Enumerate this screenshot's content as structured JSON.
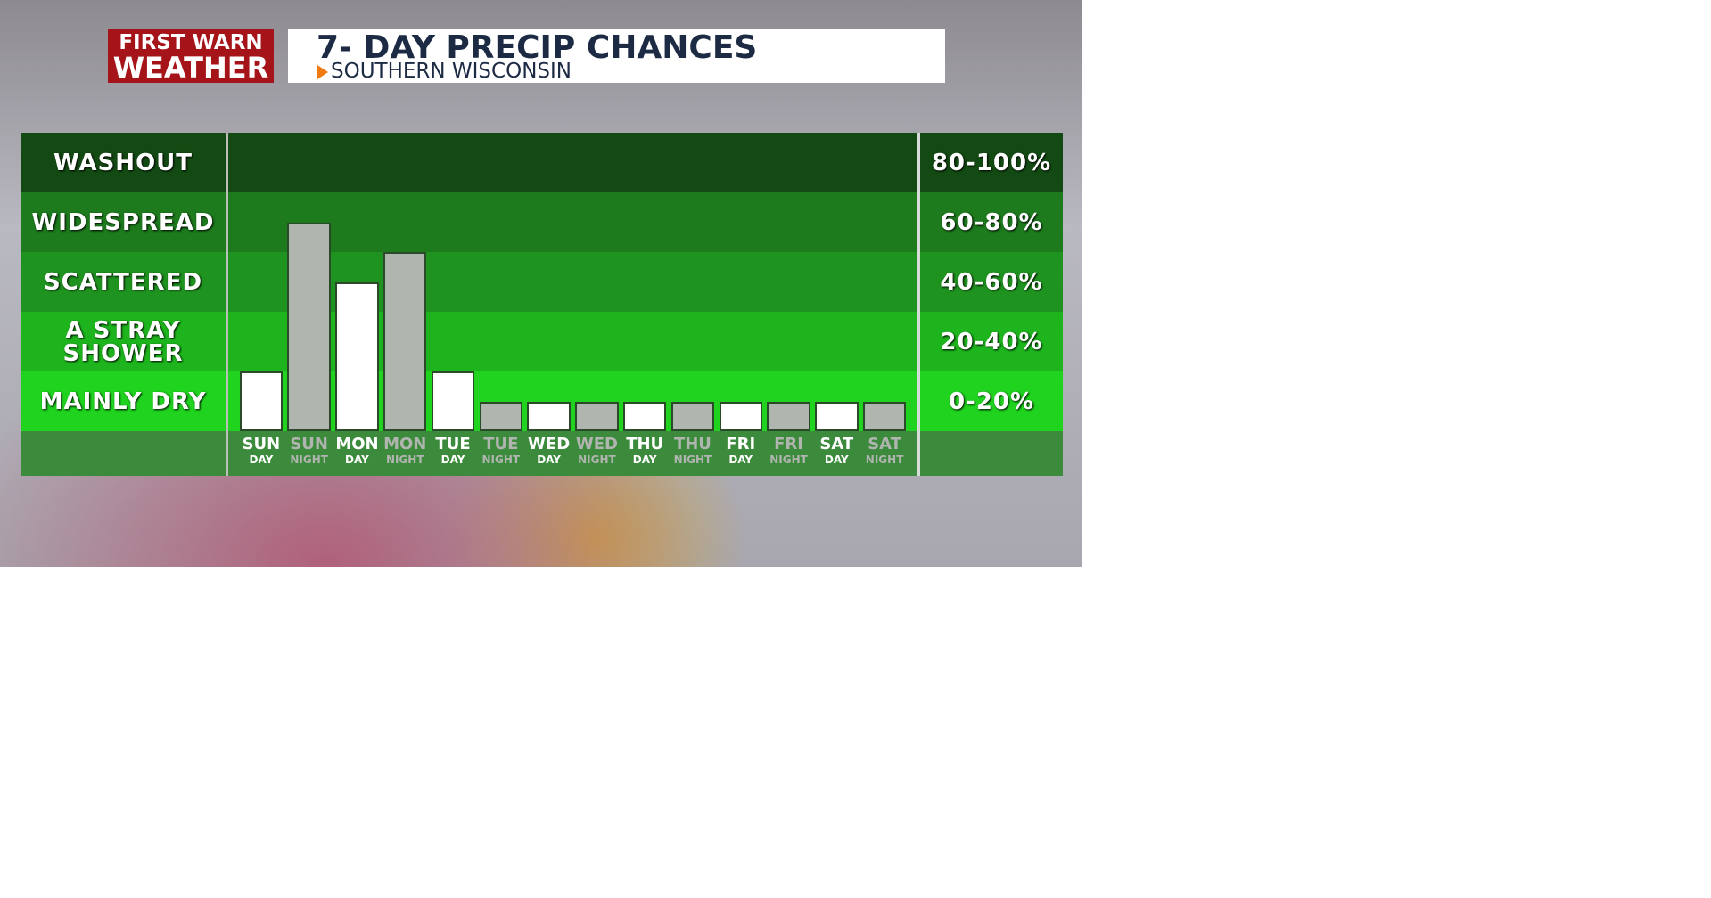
{
  "logo": {
    "line1": "FIRST WARN",
    "line2": "WEATHER"
  },
  "chart_data": {
    "type": "bar",
    "title": "7- DAY PRECIP CHANCES",
    "subtitle": "SOUTHERN WISCONSIN",
    "ylim": [
      0,
      100
    ],
    "bands": [
      {
        "label": "MAINLY DRY",
        "range_label": "0-20%",
        "from": 0,
        "to": 20,
        "color": "#1fd31f"
      },
      {
        "label": "A STRAY SHOWER",
        "range_label": "20-40%",
        "from": 20,
        "to": 40,
        "color": "#1db41d"
      },
      {
        "label": "SCATTERED",
        "range_label": "40-60%",
        "from": 40,
        "to": 60,
        "color": "#1f931f"
      },
      {
        "label": "WIDESPREAD",
        "range_label": "60-80%",
        "from": 60,
        "to": 80,
        "color": "#1d7a1d"
      },
      {
        "label": "WASHOUT",
        "range_label": "80-100%",
        "from": 80,
        "to": 100,
        "color": "#134a13"
      }
    ],
    "categories": [
      {
        "day": "SUN",
        "period": "DAY"
      },
      {
        "day": "SUN",
        "period": "NIGHT"
      },
      {
        "day": "MON",
        "period": "DAY"
      },
      {
        "day": "MON",
        "period": "NIGHT"
      },
      {
        "day": "TUE",
        "period": "DAY"
      },
      {
        "day": "TUE",
        "period": "NIGHT"
      },
      {
        "day": "WED",
        "period": "DAY"
      },
      {
        "day": "WED",
        "period": "NIGHT"
      },
      {
        "day": "THU",
        "period": "DAY"
      },
      {
        "day": "THU",
        "period": "NIGHT"
      },
      {
        "day": "FRI",
        "period": "DAY"
      },
      {
        "day": "FRI",
        "period": "NIGHT"
      },
      {
        "day": "SAT",
        "period": "DAY"
      },
      {
        "day": "SAT",
        "period": "NIGHT"
      }
    ],
    "values": [
      20,
      70,
      50,
      60,
      20,
      10,
      10,
      10,
      10,
      10,
      10,
      10,
      10,
      10
    ],
    "colors": [
      "#ffffff",
      "#b0b5b0",
      "#ffffff",
      "#b0b5b0",
      "#ffffff",
      "#b0b5b0",
      "#ffffff",
      "#b0b5b0",
      "#ffffff",
      "#b0b5b0",
      "#ffffff",
      "#b0b5b0",
      "#ffffff",
      "#b0b5b0"
    ]
  }
}
